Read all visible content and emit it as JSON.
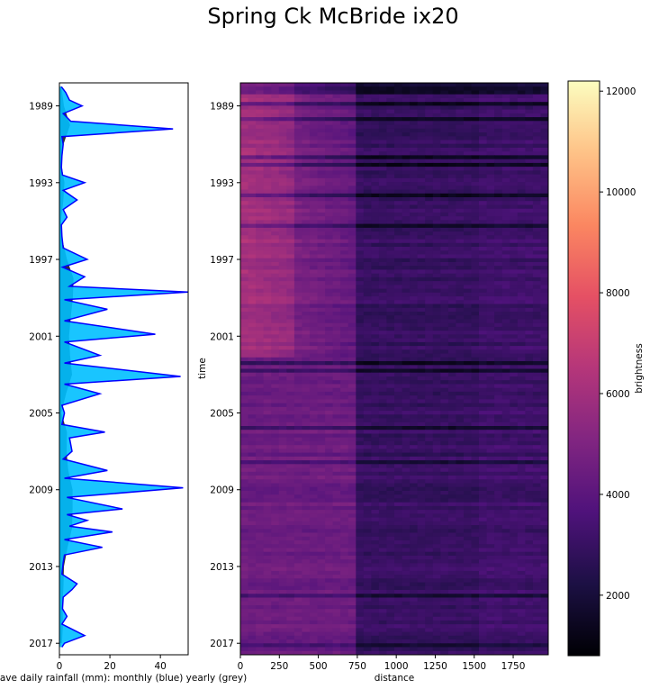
{
  "figure_title": "Spring Ck McBride ix20",
  "colors": {
    "monthly_fill": "#00bfff",
    "monthly_edge": "#0000ff",
    "yearly_fill": "#333333",
    "colormap": "magma"
  },
  "chart_data": [
    {
      "type": "area",
      "orientation": "vertical",
      "title": "",
      "xlabel": "ave daily rainfall (mm): monthly (blue) yearly (grey)",
      "ylabel": "",
      "xlim": [
        0,
        51
      ],
      "ylim": [
        2017.6,
        1987.8
      ],
      "x_ticks": [
        "0",
        "20",
        "40"
      ],
      "y_ticks": [
        "1989",
        "1993",
        "1997",
        "2001",
        "2005",
        "2009",
        "2013",
        "2017"
      ],
      "series": [
        {
          "name": "monthly",
          "points": [
            [
              1988.0,
              0.8
            ],
            [
              1988.3,
              2.5
            ],
            [
              1988.7,
              4.0
            ],
            [
              1989.0,
              9.0
            ],
            [
              1989.4,
              1.5
            ],
            [
              1989.8,
              4.5
            ],
            [
              1990.2,
              45.0
            ],
            [
              1990.6,
              1.0
            ],
            [
              1991.0,
              1.5
            ],
            [
              1991.6,
              1.0
            ],
            [
              1992.2,
              0.8
            ],
            [
              1992.6,
              1.2
            ],
            [
              1993.0,
              10.0
            ],
            [
              1993.4,
              1.5
            ],
            [
              1993.9,
              7.0
            ],
            [
              1994.4,
              1.5
            ],
            [
              1994.8,
              3.0
            ],
            [
              1995.2,
              0.8
            ],
            [
              1995.8,
              1.0
            ],
            [
              1996.4,
              1.5
            ],
            [
              1997.0,
              11.0
            ],
            [
              1997.4,
              1.2
            ],
            [
              1997.9,
              10.0
            ],
            [
              1998.4,
              4.0
            ],
            [
              1998.7,
              51.0
            ],
            [
              1999.1,
              2.0
            ],
            [
              1999.6,
              19.0
            ],
            [
              2000.2,
              2.0
            ],
            [
              2000.9,
              38.0
            ],
            [
              2001.3,
              2.0
            ],
            [
              2002.0,
              16.0
            ],
            [
              2002.4,
              2.0
            ],
            [
              2003.1,
              48.0
            ],
            [
              2003.5,
              2.0
            ],
            [
              2004.0,
              16.0
            ],
            [
              2004.6,
              1.0
            ],
            [
              2005.0,
              2.0
            ],
            [
              2005.6,
              1.0
            ],
            [
              2006.0,
              18.0
            ],
            [
              2006.3,
              4.0
            ],
            [
              2007.0,
              5.0
            ],
            [
              2007.4,
              1.5
            ],
            [
              2008.0,
              19.0
            ],
            [
              2008.4,
              2.0
            ],
            [
              2008.9,
              49.0
            ],
            [
              2009.4,
              3.0
            ],
            [
              2010.0,
              25.0
            ],
            [
              2010.3,
              3.0
            ],
            [
              2010.6,
              11.0
            ],
            [
              2010.9,
              4.0
            ],
            [
              2011.2,
              21.0
            ],
            [
              2011.6,
              2.0
            ],
            [
              2012.0,
              17.0
            ],
            [
              2012.4,
              2.0
            ],
            [
              2012.8,
              1.5
            ],
            [
              2013.4,
              1.0
            ],
            [
              2013.9,
              7.0
            ],
            [
              2014.2,
              5.0
            ],
            [
              2014.6,
              1.5
            ],
            [
              2015.2,
              1.2
            ],
            [
              2015.6,
              3.0
            ],
            [
              2016.0,
              1.0
            ],
            [
              2016.6,
              10.0
            ],
            [
              2017.0,
              2.0
            ],
            [
              2017.2,
              1.0
            ]
          ]
        },
        {
          "name": "yearly",
          "points": [
            [
              1988.0,
              0.8
            ],
            [
              1989.0,
              1.8
            ],
            [
              1990.0,
              4.2
            ],
            [
              1991.0,
              1.6
            ],
            [
              1992.0,
              0.7
            ],
            [
              1993.0,
              2.0
            ],
            [
              1994.0,
              1.5
            ],
            [
              1995.0,
              0.6
            ],
            [
              1996.0,
              1.2
            ],
            [
              1997.0,
              3.0
            ],
            [
              1998.0,
              5.6
            ],
            [
              1999.0,
              5.3
            ],
            [
              2000.0,
              4.5
            ],
            [
              2001.0,
              3.8
            ],
            [
              2002.0,
              4.2
            ],
            [
              2003.0,
              5.0
            ],
            [
              2004.0,
              2.6
            ],
            [
              2005.0,
              0.8
            ],
            [
              2006.0,
              3.0
            ],
            [
              2007.0,
              2.8
            ],
            [
              2008.0,
              3.5
            ],
            [
              2009.0,
              5.2
            ],
            [
              2010.0,
              5.2
            ],
            [
              2011.0,
              5.0
            ],
            [
              2012.0,
              3.2
            ],
            [
              2013.0,
              1.8
            ],
            [
              2014.0,
              1.6
            ],
            [
              2015.0,
              1.2
            ],
            [
              2016.0,
              1.4
            ],
            [
              2017.0,
              1.0
            ]
          ]
        }
      ]
    },
    {
      "type": "heatmap",
      "title": "",
      "xlabel": "distance",
      "ylabel": "time",
      "xlim": [
        0,
        1975
      ],
      "ylim": [
        2017.6,
        1987.8
      ],
      "x_ticks": [
        "0",
        "250",
        "500",
        "750",
        "1000",
        "1250",
        "1500",
        "1750"
      ],
      "y_ticks": [
        "1989",
        "1993",
        "1997",
        "2001",
        "2005",
        "2009",
        "2013",
        "2017"
      ],
      "colorbar": {
        "label": "brightness",
        "range": [
          800,
          12200
        ],
        "ticks": [
          "2000",
          "4000",
          "6000",
          "8000",
          "10000",
          "12000"
        ]
      }
    }
  ]
}
